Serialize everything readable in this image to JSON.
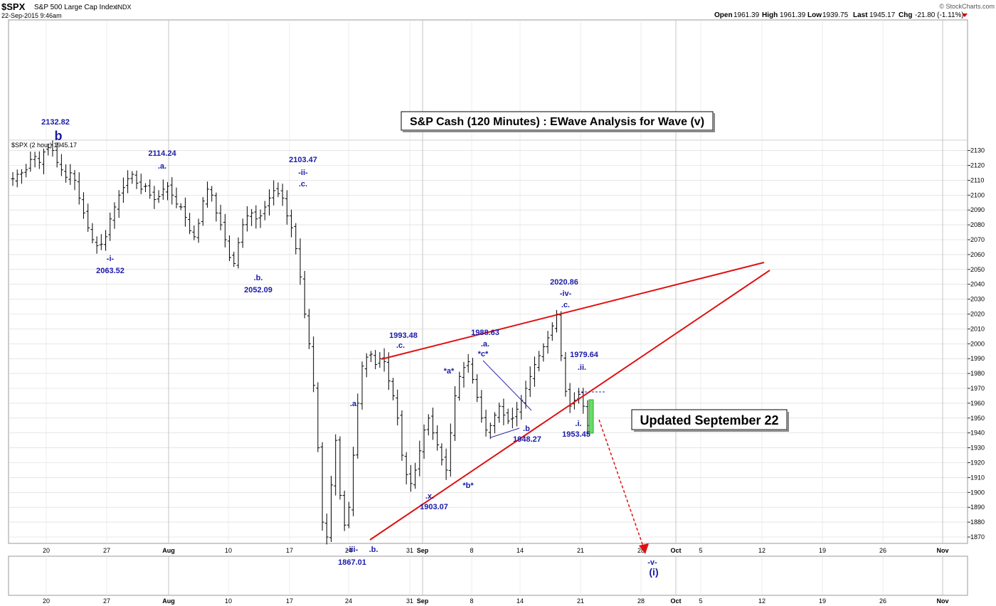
{
  "header": {
    "symbol": "$SPX",
    "name": "S&P 500 Large Cap Index",
    "exchange": "INDX",
    "datetime": "22-Sep-2015 9:46am",
    "brand": "© StockCharts.com",
    "quote": {
      "open_label": "Open",
      "open": "1961.39",
      "high_label": "High",
      "high": "1961.39",
      "low_label": "Low",
      "low": "1939.75",
      "last_label": "Last",
      "last": "1945.17",
      "chg_label": "Chg",
      "chg": "-21.80 (-1.11%)",
      "down_color": "#cc0000"
    }
  },
  "panel_legend": "$SPX (2 hour) 1945.17",
  "chart_title": "S&P Cash (120 Minutes) : EWave Analysis for Wave (v)",
  "updated_label": "Updated September 22",
  "colors": {
    "price": "#000000",
    "annotation": "#1a1aaa",
    "trendline": "#e01010",
    "triangle": "#2a2ab0",
    "grid": "#d6d6d6",
    "highlight": "#44cc44"
  },
  "chart_data": {
    "type": "ohlc",
    "period": "2 hour",
    "ylim": [
      1862,
      2136
    ],
    "y_ticks": [
      1870,
      1880,
      1890,
      1900,
      1910,
      1920,
      1930,
      1940,
      1950,
      1960,
      1970,
      1980,
      1990,
      2000,
      2010,
      2020,
      2030,
      2040,
      2050,
      2060,
      2070,
      2080,
      2090,
      2100,
      2110,
      2120,
      2130
    ],
    "x_tick_labels": [
      "20",
      "27",
      "Aug",
      "10",
      "17",
      "24",
      "31",
      "Sep",
      "8",
      "14",
      "21",
      "28",
      "Oct",
      "5",
      "12",
      "19",
      "26",
      "Nov"
    ],
    "x_tick_labels_lower": [
      "20",
      "27",
      "Aug",
      "10",
      "17",
      "24",
      "31",
      "Sep",
      "8",
      "14",
      "21",
      "28",
      "Oct",
      "5",
      "12",
      "19",
      "26",
      "Nov"
    ],
    "closes": [
      2111,
      2114,
      2115,
      2117,
      2124,
      2126,
      2122,
      2129,
      2132,
      2130,
      2122,
      2117,
      2112,
      2115,
      2110,
      2098,
      2088,
      2078,
      2070,
      2066,
      2067,
      2072,
      2084,
      2092,
      2100,
      2105,
      2111,
      2114,
      2108,
      2104,
      2106,
      2100,
      2097,
      2099,
      2104,
      2106,
      2100,
      2094,
      2092,
      2085,
      2076,
      2072,
      2081,
      2096,
      2104,
      2100,
      2088,
      2080,
      2070,
      2058,
      2054,
      2068,
      2080,
      2086,
      2088,
      2084,
      2086,
      2092,
      2098,
      2103,
      2101,
      2098,
      2086,
      2078,
      2064,
      2045,
      2020,
      2000,
      1972,
      1930,
      1880,
      1870,
      1905,
      1935,
      1898,
      1878,
      1890,
      1925,
      1960,
      1985,
      1991,
      1993,
      1986,
      1990,
      1988,
      1975,
      1965,
      1950,
      1925,
      1912,
      1906,
      1915,
      1928,
      1942,
      1950,
      1940,
      1932,
      1922,
      1915,
      1940,
      1965,
      1978,
      1984,
      1988,
      1976,
      1964,
      1950,
      1942,
      1945,
      1952,
      1958,
      1952,
      1948,
      1950,
      1956,
      1962,
      1970,
      1978,
      1986,
      1992,
      1998,
      2004,
      2012,
      2020,
      1992,
      1968,
      1958,
      1962,
      1966,
      1958,
      1945
    ],
    "annotations": [
      {
        "text": "2132.82",
        "kind": "price"
      },
      {
        "text": "b",
        "kind": "wave-large"
      },
      {
        "text": "2114.24",
        "kind": "price"
      },
      {
        "text": ".a.",
        "kind": "wave"
      },
      {
        "text": "-i-",
        "kind": "wave"
      },
      {
        "text": "2063.52",
        "kind": "price"
      },
      {
        "text": "2103.47",
        "kind": "price"
      },
      {
        "text": "-ii-",
        "kind": "wave"
      },
      {
        "text": ".c.",
        "kind": "wave"
      },
      {
        "text": ".b.",
        "kind": "wave"
      },
      {
        "text": "2052.09",
        "kind": "price"
      },
      {
        "text": ".a.",
        "kind": "wave"
      },
      {
        "text": "-iii-",
        "kind": "wave"
      },
      {
        "text": "1867.01",
        "kind": "price"
      },
      {
        "text": ".b.",
        "kind": "wave"
      },
      {
        "text": "1993.48",
        "kind": "price"
      },
      {
        "text": ".c.",
        "kind": "wave"
      },
      {
        "text": ".x.",
        "kind": "wave"
      },
      {
        "text": "1903.07",
        "kind": "price"
      },
      {
        "text": "*a*",
        "kind": "wave"
      },
      {
        "text": "*b*",
        "kind": "wave"
      },
      {
        "text": "1988.63",
        "kind": "price"
      },
      {
        "text": ".a.",
        "kind": "wave"
      },
      {
        "text": "*c*",
        "kind": "wave"
      },
      {
        "text": ".b",
        "kind": "wave"
      },
      {
        "text": "1948.27",
        "kind": "price"
      },
      {
        "text": "2020.86",
        "kind": "price"
      },
      {
        "text": "-iv-",
        "kind": "wave"
      },
      {
        "text": ".c.",
        "kind": "wave"
      },
      {
        "text": "1979.64",
        "kind": "price"
      },
      {
        "text": ".ii.",
        "kind": "wave"
      },
      {
        "text": ".i.",
        "kind": "wave"
      },
      {
        "text": "1953.45",
        "kind": "price"
      },
      {
        "text": "-v-",
        "kind": "wave"
      },
      {
        "text": "(i)",
        "kind": "wave"
      }
    ]
  }
}
